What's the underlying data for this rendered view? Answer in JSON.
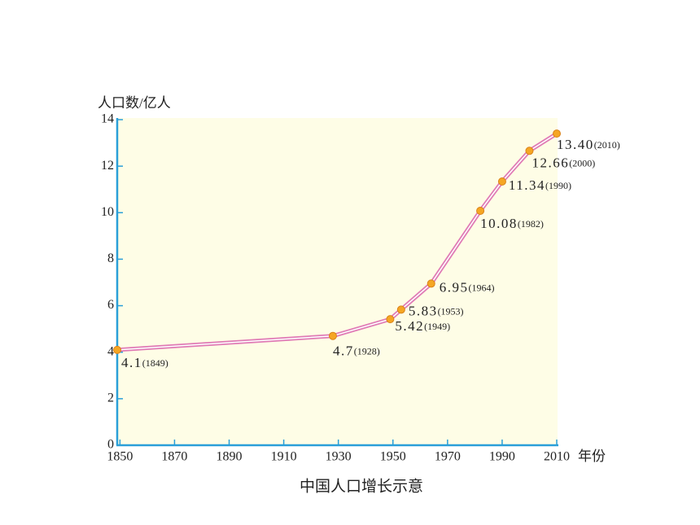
{
  "chart_data": {
    "type": "line",
    "title": "中国人口增长示意",
    "y_label": "人口数/亿人",
    "x_label": "年份",
    "x": [
      1849,
      1928,
      1949,
      1953,
      1964,
      1982,
      1990,
      2000,
      2010
    ],
    "x_labels": [
      "(1849)",
      "(1928)",
      "(1949)",
      "(1953)",
      "(1964)",
      "(1982)",
      "(1990)",
      "(2000)",
      "(2010)"
    ],
    "values": [
      4.1,
      4.7,
      5.42,
      5.83,
      6.95,
      10.08,
      11.34,
      12.66,
      13.4
    ],
    "value_labels": [
      "4.1",
      "4.7",
      "5.42",
      "5.83",
      "6.95",
      "10.08",
      "11.34",
      "12.66",
      "13.40"
    ],
    "color": "#e07bb5",
    "marker_color": "#f5a623",
    "axis_color": "#2a9fd8",
    "background": "#fefde6",
    "xlim": [
      1849,
      2010
    ],
    "ylim": [
      0,
      14
    ],
    "xticks": [
      1850,
      1870,
      1890,
      1910,
      1930,
      1950,
      1970,
      1990,
      2010
    ],
    "yticks": [
      0,
      2,
      4,
      6,
      8,
      10,
      12,
      14
    ]
  }
}
